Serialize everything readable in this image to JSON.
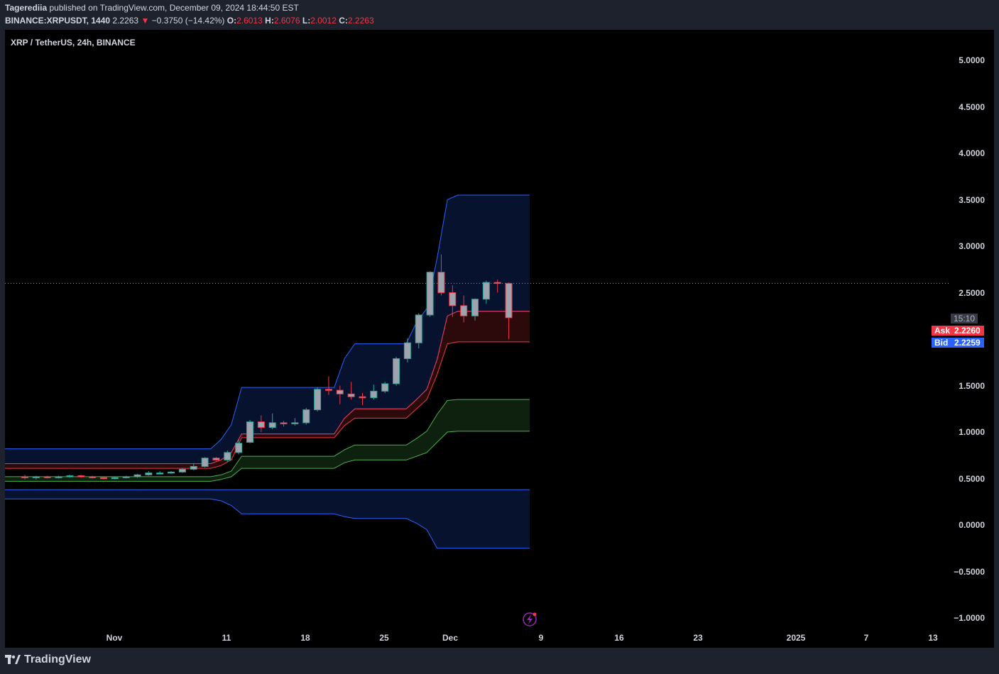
{
  "header": {
    "author": "Tagerediia",
    "published_text": " published on TradingView.com, December 09, 2024 18:44:50 EST",
    "symbol_line": "BINANCE:XRPUSDT, 1440",
    "last_price": "2.2263",
    "change_arrow": "▼",
    "change": "−0.3750 (−14.42%)",
    "open_label": "O:",
    "open": "2.6013",
    "high_label": "H:",
    "high": "2.6076",
    "low_label": "L:",
    "low": "2.0012",
    "close_label": "C:",
    "close": "2.2263"
  },
  "chart_title": "XRP / TetherUS, 24h, BINANCE",
  "price_axis": [
    "5.0000",
    "4.5000",
    "4.0000",
    "3.5000",
    "3.0000",
    "2.5000",
    "1.5000",
    "1.0000",
    "0.5000",
    "0.0000",
    "−0.5000",
    "−1.0000"
  ],
  "time_axis": [
    "Nov",
    "11",
    "18",
    "25",
    "Dec",
    "9",
    "16",
    "23",
    "2025",
    "7",
    "13"
  ],
  "countdown": "15:10",
  "ask": {
    "label": "Ask",
    "value": "2.2260"
  },
  "bid": {
    "label": "Bid",
    "value": "2.2259"
  },
  "footer": {
    "logo_text": "TradingView"
  },
  "colors": {
    "bg": "#000000",
    "panel": "#1e222d",
    "up": "#26a69a",
    "down": "#f23645",
    "candle_body": "#9fa3ad",
    "upper_band": "#2962ff",
    "mid_band": "#f23645",
    "low_band": "#4caf50"
  },
  "chart_data": {
    "type": "candlestick",
    "title": "XRP / TetherUS, 24h, BINANCE",
    "ylim": [
      -1.0,
      5.0
    ],
    "candles": [
      {
        "o": 0.52,
        "h": 0.54,
        "l": 0.49,
        "c": 0.51
      },
      {
        "o": 0.51,
        "h": 0.53,
        "l": 0.49,
        "c": 0.52
      },
      {
        "o": 0.52,
        "h": 0.53,
        "l": 0.5,
        "c": 0.51
      },
      {
        "o": 0.51,
        "h": 0.53,
        "l": 0.5,
        "c": 0.52
      },
      {
        "o": 0.52,
        "h": 0.54,
        "l": 0.51,
        "c": 0.53
      },
      {
        "o": 0.53,
        "h": 0.54,
        "l": 0.51,
        "c": 0.52
      },
      {
        "o": 0.52,
        "h": 0.53,
        "l": 0.5,
        "c": 0.51
      },
      {
        "o": 0.51,
        "h": 0.52,
        "l": 0.49,
        "c": 0.5
      },
      {
        "o": 0.5,
        "h": 0.52,
        "l": 0.49,
        "c": 0.51
      },
      {
        "o": 0.51,
        "h": 0.53,
        "l": 0.5,
        "c": 0.52
      },
      {
        "o": 0.52,
        "h": 0.55,
        "l": 0.51,
        "c": 0.54
      },
      {
        "o": 0.54,
        "h": 0.58,
        "l": 0.53,
        "c": 0.56
      },
      {
        "o": 0.56,
        "h": 0.58,
        "l": 0.55,
        "c": 0.56
      },
      {
        "o": 0.56,
        "h": 0.58,
        "l": 0.55,
        "c": 0.57
      },
      {
        "o": 0.57,
        "h": 0.61,
        "l": 0.56,
        "c": 0.6
      },
      {
        "o": 0.6,
        "h": 0.66,
        "l": 0.59,
        "c": 0.63
      },
      {
        "o": 0.63,
        "h": 0.73,
        "l": 0.62,
        "c": 0.72
      },
      {
        "o": 0.72,
        "h": 0.73,
        "l": 0.69,
        "c": 0.7
      },
      {
        "o": 0.7,
        "h": 0.8,
        "l": 0.68,
        "c": 0.78
      },
      {
        "o": 0.78,
        "h": 0.92,
        "l": 0.76,
        "c": 0.88
      },
      {
        "o": 0.89,
        "h": 1.13,
        "l": 0.88,
        "c": 1.11
      },
      {
        "o": 1.11,
        "h": 1.18,
        "l": 1.0,
        "c": 1.05
      },
      {
        "o": 1.05,
        "h": 1.2,
        "l": 1.03,
        "c": 1.1
      },
      {
        "o": 1.1,
        "h": 1.12,
        "l": 1.06,
        "c": 1.09
      },
      {
        "o": 1.09,
        "h": 1.15,
        "l": 1.07,
        "c": 1.1
      },
      {
        "o": 1.1,
        "h": 1.26,
        "l": 1.08,
        "c": 1.24
      },
      {
        "o": 1.24,
        "h": 1.48,
        "l": 1.22,
        "c": 1.46
      },
      {
        "o": 1.46,
        "h": 1.6,
        "l": 1.4,
        "c": 1.45
      },
      {
        "o": 1.45,
        "h": 1.5,
        "l": 1.3,
        "c": 1.41
      },
      {
        "o": 1.41,
        "h": 1.54,
        "l": 1.35,
        "c": 1.38
      },
      {
        "o": 1.38,
        "h": 1.42,
        "l": 1.29,
        "c": 1.37
      },
      {
        "o": 1.37,
        "h": 1.51,
        "l": 1.35,
        "c": 1.44
      },
      {
        "o": 1.44,
        "h": 1.54,
        "l": 1.42,
        "c": 1.52
      },
      {
        "o": 1.52,
        "h": 1.81,
        "l": 1.5,
        "c": 1.79
      },
      {
        "o": 1.79,
        "h": 2.01,
        "l": 1.75,
        "c": 1.96
      },
      {
        "o": 1.96,
        "h": 2.28,
        "l": 1.9,
        "c": 2.26
      },
      {
        "o": 2.26,
        "h": 2.73,
        "l": 2.24,
        "c": 2.72
      },
      {
        "o": 2.72,
        "h": 2.91,
        "l": 2.47,
        "c": 2.5
      },
      {
        "o": 2.5,
        "h": 2.58,
        "l": 2.24,
        "c": 2.36
      },
      {
        "o": 2.36,
        "h": 2.47,
        "l": 2.18,
        "c": 2.25
      },
      {
        "o": 2.25,
        "h": 2.44,
        "l": 2.2,
        "c": 2.43
      },
      {
        "o": 2.43,
        "h": 2.63,
        "l": 2.38,
        "c": 2.61
      },
      {
        "o": 2.61,
        "h": 2.64,
        "l": 2.5,
        "c": 2.6
      },
      {
        "o": 2.6,
        "h": 2.61,
        "l": 2.0,
        "c": 2.23
      }
    ],
    "bands": {
      "upper_outer": [
        0.82,
        0.82,
        0.82,
        0.82,
        0.82,
        0.82,
        0.82,
        0.82,
        0.82,
        0.82,
        0.82,
        0.82,
        0.82,
        0.82,
        0.82,
        0.82,
        0.82,
        0.82,
        0.82,
        0.82,
        0.82,
        0.92,
        1.08,
        1.48,
        1.48,
        1.48,
        1.48,
        1.48,
        1.48,
        1.48,
        1.48,
        1.48,
        1.48,
        1.79,
        1.95,
        1.95,
        1.95,
        1.95,
        1.95,
        1.95,
        2.18,
        2.33,
        2.87,
        3.5,
        3.55,
        3.55,
        3.55,
        3.55,
        3.55,
        3.55,
        3.55,
        3.55
      ],
      "upper_inner": [
        0.66,
        0.66,
        0.66,
        0.66,
        0.66,
        0.66,
        0.66,
        0.66,
        0.66,
        0.66,
        0.66,
        0.66,
        0.66,
        0.66,
        0.66,
        0.66,
        0.66,
        0.66,
        0.66,
        0.66,
        0.66,
        0.7,
        0.78,
        0.98,
        0.98,
        0.98,
        0.98,
        0.98,
        0.98,
        0.98,
        0.98,
        0.98,
        0.98,
        1.15,
        1.25,
        1.25,
        1.25,
        1.25,
        1.25,
        1.25,
        1.35,
        1.46,
        1.78,
        2.25,
        2.3,
        2.3,
        2.3,
        2.3,
        2.3,
        2.3,
        2.3,
        2.3
      ],
      "mid_low": [
        0.61,
        0.61,
        0.61,
        0.61,
        0.61,
        0.61,
        0.61,
        0.61,
        0.61,
        0.61,
        0.61,
        0.61,
        0.61,
        0.61,
        0.61,
        0.61,
        0.61,
        0.61,
        0.61,
        0.61,
        0.61,
        0.64,
        0.7,
        0.94,
        0.94,
        0.94,
        0.94,
        0.94,
        0.94,
        0.94,
        0.94,
        0.94,
        0.94,
        1.07,
        1.15,
        1.15,
        1.15,
        1.15,
        1.15,
        1.15,
        1.25,
        1.35,
        1.62,
        1.95,
        1.97,
        1.97,
        1.97,
        1.97,
        1.97,
        1.97,
        1.97,
        1.97
      ],
      "green_top": [
        0.52,
        0.52,
        0.52,
        0.52,
        0.52,
        0.52,
        0.52,
        0.52,
        0.52,
        0.52,
        0.52,
        0.52,
        0.52,
        0.52,
        0.52,
        0.52,
        0.52,
        0.52,
        0.52,
        0.52,
        0.52,
        0.54,
        0.58,
        0.74,
        0.74,
        0.74,
        0.74,
        0.74,
        0.74,
        0.74,
        0.74,
        0.74,
        0.74,
        0.81,
        0.86,
        0.86,
        0.86,
        0.86,
        0.86,
        0.86,
        0.93,
        1.01,
        1.19,
        1.34,
        1.35,
        1.35,
        1.35,
        1.35,
        1.35,
        1.35,
        1.35,
        1.35
      ],
      "green_bottom": [
        0.47,
        0.47,
        0.47,
        0.47,
        0.47,
        0.47,
        0.47,
        0.47,
        0.47,
        0.47,
        0.47,
        0.47,
        0.47,
        0.47,
        0.47,
        0.47,
        0.47,
        0.47,
        0.47,
        0.47,
        0.47,
        0.49,
        0.52,
        0.61,
        0.61,
        0.61,
        0.61,
        0.61,
        0.61,
        0.61,
        0.61,
        0.61,
        0.61,
        0.67,
        0.7,
        0.7,
        0.7,
        0.7,
        0.7,
        0.7,
        0.74,
        0.78,
        0.89,
        1.0,
        1.01,
        1.01,
        1.01,
        1.01,
        1.01,
        1.01,
        1.01,
        1.01
      ],
      "lower_top": [
        0.38,
        0.38,
        0.38,
        0.38,
        0.38,
        0.38,
        0.38,
        0.38,
        0.38,
        0.38,
        0.38,
        0.38,
        0.38,
        0.38,
        0.38,
        0.38,
        0.38,
        0.38,
        0.38,
        0.38,
        0.38,
        0.38,
        0.38,
        0.38,
        0.38,
        0.38,
        0.38,
        0.38,
        0.38,
        0.38,
        0.38,
        0.38,
        0.38,
        0.38,
        0.38,
        0.38,
        0.38,
        0.38,
        0.38,
        0.38,
        0.38,
        0.38,
        0.38,
        0.38,
        0.38,
        0.38,
        0.38,
        0.38,
        0.38,
        0.38,
        0.38,
        0.38
      ],
      "lower_bottom": [
        0.28,
        0.28,
        0.28,
        0.28,
        0.28,
        0.28,
        0.28,
        0.28,
        0.28,
        0.28,
        0.28,
        0.28,
        0.28,
        0.28,
        0.28,
        0.28,
        0.28,
        0.28,
        0.28,
        0.28,
        0.28,
        0.26,
        0.21,
        0.12,
        0.12,
        0.12,
        0.12,
        0.12,
        0.12,
        0.12,
        0.12,
        0.12,
        0.12,
        0.09,
        0.07,
        0.07,
        0.07,
        0.07,
        0.07,
        0.07,
        0.02,
        -0.05,
        -0.25,
        -0.25,
        -0.25,
        -0.25,
        -0.25,
        -0.25,
        -0.25,
        -0.25,
        -0.25,
        -0.25
      ]
    }
  }
}
